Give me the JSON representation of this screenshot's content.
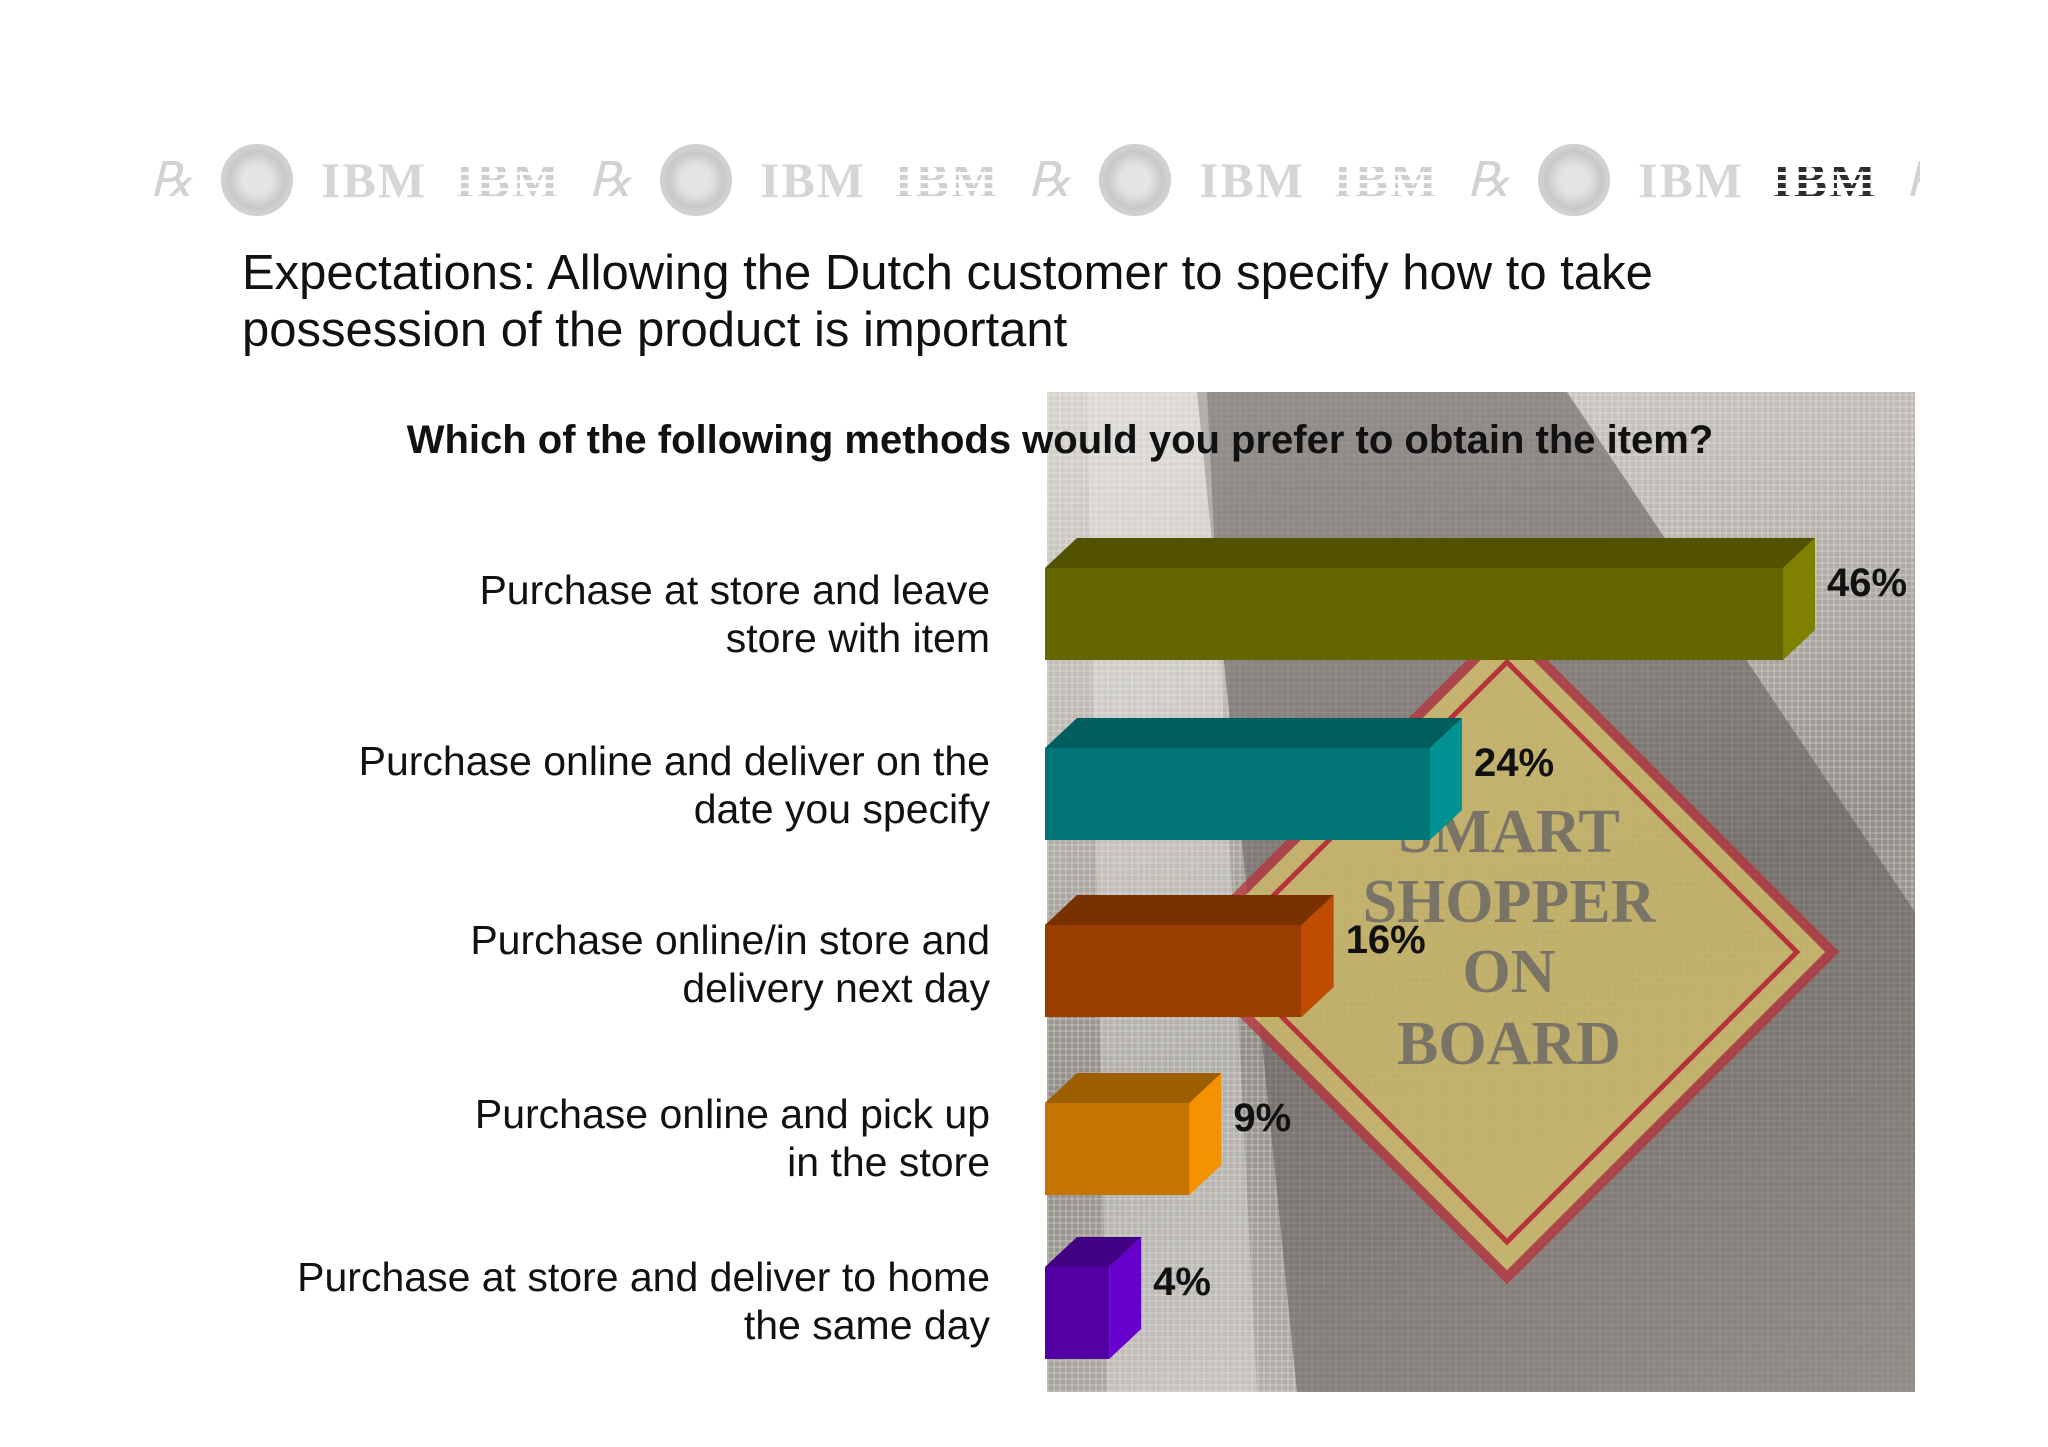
{
  "header": {
    "logo_words": [
      "IBM",
      "IBM",
      "IBM",
      "IBM",
      "IBM",
      "IBM",
      "IBM",
      "IBM"
    ],
    "seal_icon": "computing-tabulating-recording-seal-icon"
  },
  "slide": {
    "title_line1": "Expectations: Allowing the Dutch customer to specify how to take",
    "title_line2": "possession of the product is important"
  },
  "photo": {
    "sign_lines": [
      "SMART",
      "SHOPPER",
      "ON",
      "BOARD"
    ]
  },
  "chart_data": {
    "type": "bar",
    "orientation": "horizontal",
    "title": "Which of the following methods would you prefer to obtain the item?",
    "categories": [
      [
        "Purchase at store and leave",
        "store with item"
      ],
      [
        "Purchase online and deliver on the",
        "date you specify"
      ],
      [
        "Purchase online/in store and",
        "delivery next day"
      ],
      [
        "Purchase online and pick up",
        "in the store"
      ],
      [
        "Purchase at store and deliver to home",
        "the same day"
      ]
    ],
    "values": [
      46,
      24,
      16,
      9,
      4
    ],
    "value_labels": [
      "46%",
      "24%",
      "16%",
      "9%",
      "4%"
    ],
    "colors": [
      "#666600",
      "#007575",
      "#993D00",
      "#C47500",
      "#5200A3"
    ],
    "xlim": [
      0,
      46
    ],
    "grid": false,
    "legend": "none"
  }
}
